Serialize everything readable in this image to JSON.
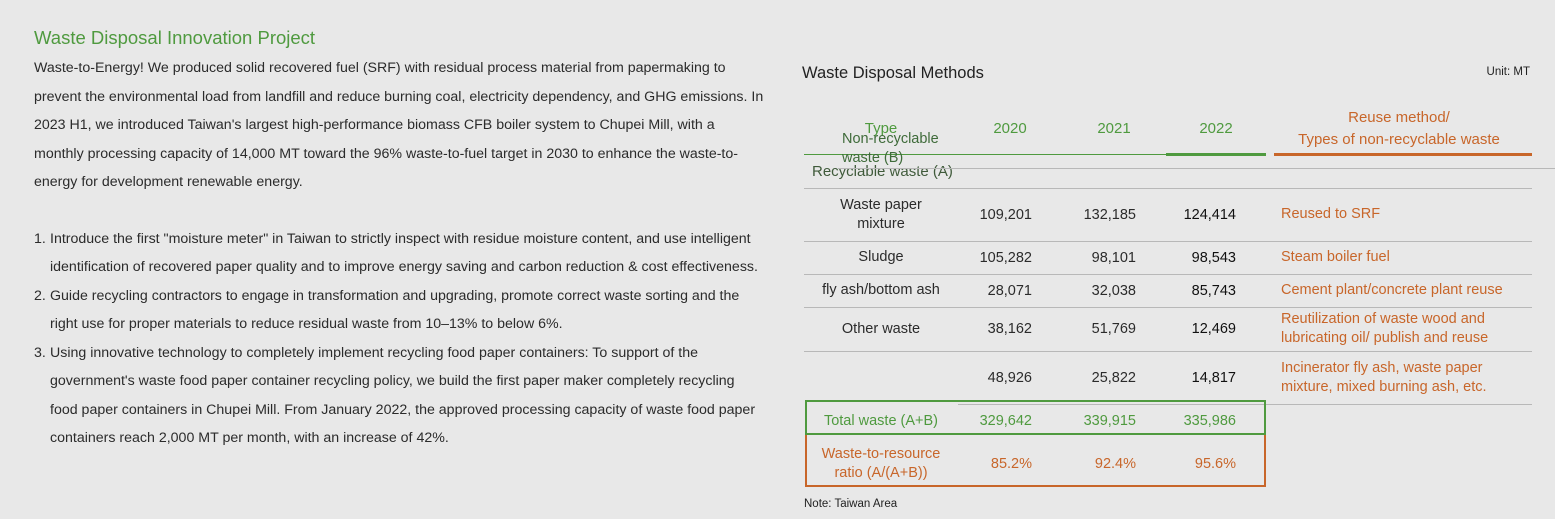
{
  "left": {
    "title": "Waste Disposal Innovation Project",
    "intro": "Waste-to-Energy! We produced solid recovered fuel (SRF) with residual process material from papermaking to prevent the environmental load from landfill and reduce burning coal, electricity dependency, and GHG emissions. In 2023 H1, we introduced Taiwan's largest high-performance biomass CFB boiler system to Chupei Mill, with a monthly processing capacity of 14,000 MT toward the 96% waste-to-fuel target in 2030 to enhance the waste-to-energy for development renewable energy.",
    "items": [
      {
        "num": "1.",
        "text": "Introduce the first \"moisture meter\" in Taiwan to strictly inspect with residue moisture content, and use intelligent identification of recovered paper quality and to improve energy saving and carbon reduction & cost effectiveness."
      },
      {
        "num": "2.",
        "text": "Guide recycling contractors to engage in transformation and upgrading, promote correct waste sorting and the right use for proper materials to reduce residual waste from 10–13% to below 6%."
      },
      {
        "num": "3.",
        "text": "Using innovative technology to completely implement recycling food paper containers: To support of the government's waste food paper container recycling policy, we build the first paper maker completely recycling food paper containers in Chupei Mill. From January 2022, the approved processing capacity of waste food paper containers reach 2,000 MT per month, with an increase of 42%."
      }
    ]
  },
  "right": {
    "title": "Waste Disposal Methods",
    "unit": "Unit: MT",
    "headers": {
      "type": "Type",
      "y2020": "2020",
      "y2021": "2021",
      "y2022": "2022",
      "reuse_line1": "Reuse method/",
      "reuse_line2": "Types of non-recyclable waste"
    },
    "section_recyclable": "Recyclable waste  (A)",
    "rows": [
      {
        "type_l1": "Waste paper",
        "type_l2": "mixture",
        "v2020": "109,201",
        "v2021": "132,185",
        "v2022": "124,414",
        "reuse_l1": "Reused to SRF",
        "reuse_l2": ""
      },
      {
        "type_l1": "Sludge",
        "type_l2": "",
        "v2020": "105,282",
        "v2021": "98,101",
        "v2022": "98,543",
        "reuse_l1": "Steam boiler fuel",
        "reuse_l2": ""
      },
      {
        "type_l1": "fly ash/bottom ash",
        "type_l2": "",
        "v2020": "28,071",
        "v2021": "32,038",
        "v2022": "85,743",
        "reuse_l1": "Cement plant/concrete plant reuse",
        "reuse_l2": ""
      },
      {
        "type_l1": "Other waste",
        "type_l2": "",
        "v2020": "38,162",
        "v2021": "51,769",
        "v2022": "12,469",
        "reuse_l1": "Reutilization of waste wood and",
        "reuse_l2": "lubricating oil/ publish and reuse"
      }
    ],
    "nonrecyclable": {
      "type_l1": "Non-recyclable",
      "type_l2": "waste (B)",
      "v2020": "48,926",
      "v2021": "25,822",
      "v2022": "14,817",
      "reuse_l1": "Incinerator fly ash, waste paper",
      "reuse_l2": "mixture, mixed burning ash, etc."
    },
    "total": {
      "label": "Total waste (A+B)",
      "v2020": "329,642",
      "v2021": "339,915",
      "v2022": "335,986"
    },
    "ratio": {
      "label_l1": "Waste-to-resource",
      "label_l2": "ratio (A/(A+B))",
      "v2020": "85.2%",
      "v2021": "92.4%",
      "v2022": "95.6%"
    },
    "note": "Note: Taiwan Area",
    "colors": {
      "green": "#4f9a3f",
      "orange": "#c8662a"
    }
  }
}
